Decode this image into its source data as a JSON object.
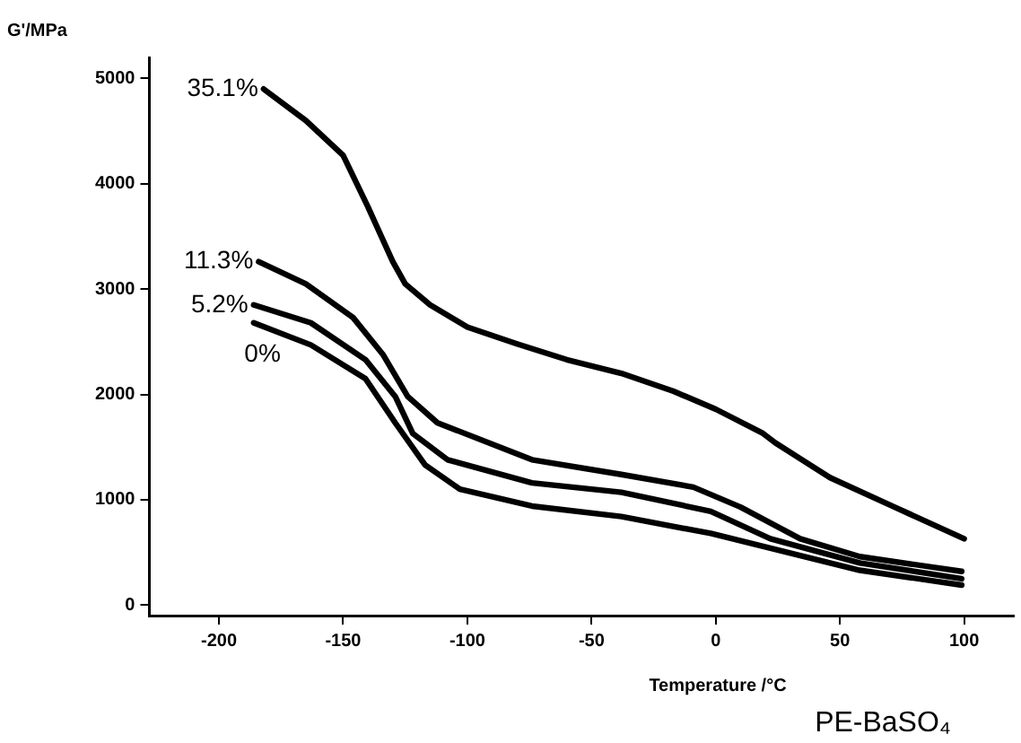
{
  "chart_data": {
    "type": "line",
    "xlabel": "Temperature /°C",
    "ylabel": "G'/MPa",
    "annotations": [
      "PE-BaSO₄"
    ],
    "xlim": [
      -228,
      120
    ],
    "xticks": [
      -200,
      -150,
      -100,
      -50,
      0,
      50,
      100
    ],
    "ylim": [
      -100,
      5200
    ],
    "yticks": [
      0,
      1000,
      2000,
      3000,
      4000,
      5000
    ],
    "grid": false,
    "legend": false,
    "marker": "none",
    "line_style": "solid",
    "series": [
      {
        "name": "35.1%",
        "color": "#000000",
        "x": [
          -182,
          -165,
          -150,
          -140,
          -130,
          -125,
          -115,
          -100,
          -80,
          -60,
          -38,
          -17,
          0,
          19,
          24,
          46,
          72,
          100
        ],
        "values": [
          4900,
          4600,
          4270,
          3780,
          3260,
          3050,
          2850,
          2640,
          2480,
          2330,
          2200,
          2030,
          1860,
          1630,
          1540,
          1210,
          930,
          630
        ]
      },
      {
        "name": "11.3%",
        "color": "#000000",
        "x": [
          -184,
          -165,
          -146,
          -134,
          -124,
          -112,
          -74,
          -38,
          -9,
          10,
          34,
          58,
          99
        ],
        "values": [
          3260,
          3050,
          2730,
          2380,
          1980,
          1730,
          1380,
          1240,
          1120,
          930,
          630,
          460,
          320
        ]
      },
      {
        "name": "5.2%",
        "color": "#000000",
        "x": [
          -186,
          -163,
          -141,
          -129,
          -122,
          -108,
          -74,
          -38,
          -2,
          22,
          58,
          99
        ],
        "values": [
          2850,
          2680,
          2330,
          1980,
          1630,
          1380,
          1160,
          1070,
          890,
          630,
          400,
          250
        ]
      },
      {
        "name": "0%",
        "color": "#000000",
        "x": [
          -186,
          -163,
          -141,
          -129,
          -117,
          -103,
          -74,
          -38,
          -2,
          22,
          58,
          99
        ],
        "values": [
          2680,
          2470,
          2150,
          1730,
          1330,
          1100,
          940,
          840,
          680,
          540,
          330,
          190
        ]
      }
    ]
  }
}
